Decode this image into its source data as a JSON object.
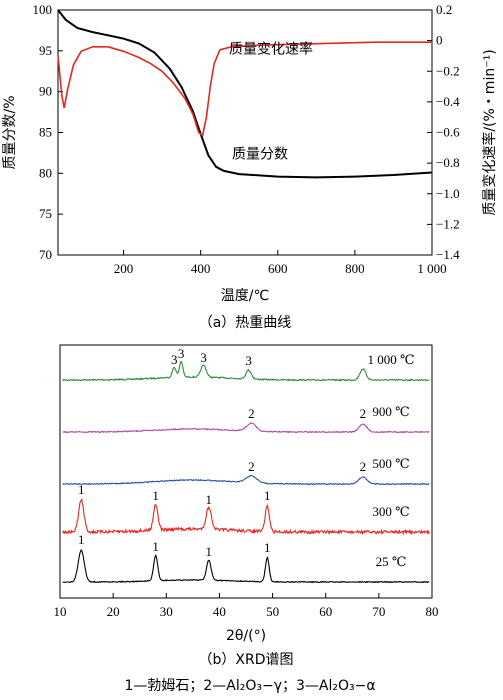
{
  "colors": {
    "black": "#000000",
    "red": "#e5281f",
    "green": "#2f8a3a",
    "magenta": "#b04aa6",
    "blue": "#2a51a6"
  },
  "chart_data": [
    {
      "type": "line",
      "caption": "（a）热重曲线",
      "xlabel": "温度/℃",
      "ylabel_left": "质量分数/%",
      "ylabel_right": "质量变化速率/(%・min⁻¹)",
      "xlim": [
        30,
        1000
      ],
      "ylim_left": [
        70,
        100
      ],
      "ylim_right": [
        -1.4,
        0.2
      ],
      "x_ticks": [
        200,
        400,
        600,
        800,
        1000
      ],
      "x_tick_labels": [
        "200",
        "400",
        "600",
        "800",
        "1 000"
      ],
      "y_ticks_left": [
        70,
        75,
        80,
        85,
        90,
        95,
        100
      ],
      "y_ticks_right": [
        -1.4,
        -1.2,
        -1.0,
        -0.8,
        -0.6,
        -0.4,
        -0.2,
        0,
        0.2
      ],
      "y_tick_labels_right": [
        "−1.4",
        "−1.2",
        "−1.0",
        "−0.8",
        "−0.6",
        "−0.4",
        "−0.2",
        "0",
        "0.2"
      ],
      "series": [
        {
          "name": "质量分数",
          "axis": "left",
          "color": "#000000",
          "points": [
            [
              30,
              100
            ],
            [
              50,
              98.8
            ],
            [
              80,
              97.8
            ],
            [
              120,
              97.3
            ],
            [
              160,
              96.9
            ],
            [
              200,
              96.5
            ],
            [
              240,
              95.9
            ],
            [
              280,
              94.8
            ],
            [
              320,
              92.8
            ],
            [
              350,
              90.6
            ],
            [
              380,
              87.6
            ],
            [
              400,
              84.8
            ],
            [
              420,
              82.2
            ],
            [
              440,
              80.8
            ],
            [
              460,
              80.3
            ],
            [
              500,
              79.9
            ],
            [
              600,
              79.6
            ],
            [
              700,
              79.5
            ],
            [
              800,
              79.6
            ],
            [
              900,
              79.8
            ],
            [
              1000,
              80.1
            ]
          ]
        },
        {
          "name": "质量变化速率",
          "axis": "right",
          "color": "#e5281f",
          "points": [
            [
              30,
              -0.1
            ],
            [
              40,
              -0.36
            ],
            [
              46,
              -0.44
            ],
            [
              55,
              -0.32
            ],
            [
              70,
              -0.16
            ],
            [
              90,
              -0.07
            ],
            [
              120,
              -0.04
            ],
            [
              160,
              -0.04
            ],
            [
              200,
              -0.07
            ],
            [
              240,
              -0.11
            ],
            [
              270,
              -0.15
            ],
            [
              300,
              -0.2
            ],
            [
              330,
              -0.28
            ],
            [
              360,
              -0.38
            ],
            [
              380,
              -0.48
            ],
            [
              395,
              -0.6
            ],
            [
              405,
              -0.62
            ],
            [
              415,
              -0.5
            ],
            [
              425,
              -0.3
            ],
            [
              435,
              -0.15
            ],
            [
              450,
              -0.06
            ],
            [
              480,
              -0.04
            ],
            [
              550,
              -0.03
            ],
            [
              700,
              -0.02
            ],
            [
              850,
              -0.01
            ],
            [
              1000,
              -0.01
            ]
          ]
        }
      ],
      "annotations": [
        {
          "text": "质量变化速率",
          "x": 720,
          "y_left": 94.7
        },
        {
          "text": "质量分数",
          "x": 720,
          "y_left": 81.8
        }
      ]
    },
    {
      "type": "line",
      "caption": "（b）XRD谱图",
      "xlabel": "2θ/(°)",
      "xlim": [
        10,
        80
      ],
      "x_ticks": [
        10,
        20,
        30,
        40,
        50,
        60,
        70,
        80
      ],
      "series": [
        {
          "name": "1 000 ℃",
          "color": "#2f8a3a",
          "peaks": [
            [
              31.5,
              "3"
            ],
            [
              32.8,
              "3"
            ],
            [
              37,
              "3"
            ],
            [
              45.5,
              "3"
            ],
            [
              67,
              ""
            ]
          ]
        },
        {
          "name": "900 ℃",
          "color": "#b04aa6",
          "peaks": [
            [
              46,
              "2"
            ],
            [
              67,
              "2"
            ]
          ]
        },
        {
          "name": "500 ℃",
          "color": "#2a51a6",
          "peaks": [
            [
              46,
              "2"
            ],
            [
              67,
              "2"
            ]
          ]
        },
        {
          "name": "300 ℃",
          "color": "#e5281f",
          "peaks": [
            [
              14,
              "1"
            ],
            [
              28,
              "1"
            ],
            [
              38,
              "1"
            ],
            [
              49,
              "1"
            ]
          ]
        },
        {
          "name": "25 ℃",
          "color": "#000000",
          "peaks": [
            [
              14,
              "1"
            ],
            [
              28,
              "1"
            ],
            [
              38,
              "1"
            ],
            [
              49,
              "1"
            ]
          ]
        }
      ],
      "legend_note": "1—勃姆石；2—Al₂O₃−γ；3—Al₂O₃−α"
    }
  ]
}
